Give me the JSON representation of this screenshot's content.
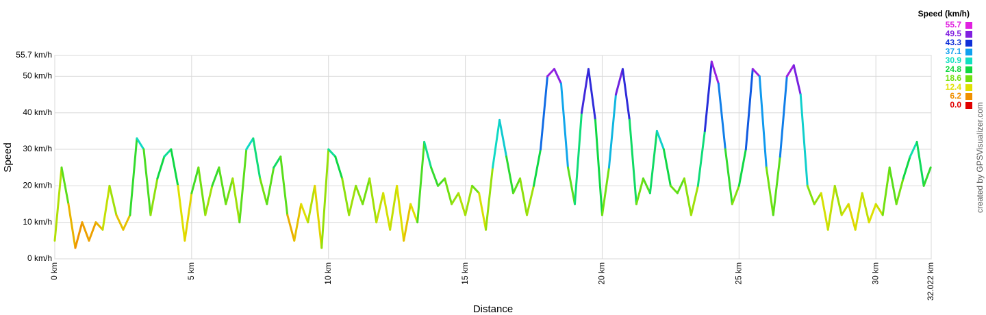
{
  "chart_data": {
    "type": "line",
    "x_label": "Distance",
    "y_label": "Speed",
    "credit": "created by GPSVisualizer.com",
    "grid": true,
    "legend_position": "top-right",
    "legend": {
      "title": "Speed (km/h)",
      "values": [
        55.7,
        49.5,
        43.3,
        37.1,
        30.9,
        24.8,
        18.6,
        12.4,
        6.2,
        {
          "value": 0,
          "label": "0.0"
        }
      ],
      "colors": [
        "#e020e0",
        "#8020e0",
        "#1030d8",
        "#10a0f0",
        "#10e0c0",
        "#10d840",
        "#70e010",
        "#e0e000",
        "#f09000",
        "#e00000"
      ]
    },
    "xlim": [
      0,
      32.022
    ],
    "ylim": [
      0,
      55.7
    ],
    "xticks": [
      {
        "value": 0,
        "label": "0 km"
      },
      {
        "value": 5,
        "label": "5 km"
      },
      {
        "value": 10,
        "label": "10 km"
      },
      {
        "value": 15,
        "label": "15 km"
      },
      {
        "value": 20,
        "label": "20 km"
      },
      {
        "value": 25,
        "label": "25 km"
      },
      {
        "value": 30,
        "label": "30 km"
      },
      {
        "value": 32.022,
        "label": "32.022 km"
      }
    ],
    "yticks": [
      {
        "value": 0,
        "label": "0 km/h"
      },
      {
        "value": 10,
        "label": "10 km/h"
      },
      {
        "value": 20,
        "label": "20 km/h"
      },
      {
        "value": 30,
        "label": "30 km/h"
      },
      {
        "value": 40,
        "label": "40 km/h"
      },
      {
        "value": 50,
        "label": "50 km/h"
      },
      {
        "value": 55.7,
        "label": "55.7 km/h"
      }
    ],
    "x": [
      0,
      0.25,
      0.5,
      0.75,
      1,
      1.25,
      1.5,
      1.75,
      2,
      2.25,
      2.5,
      2.75,
      3,
      3.25,
      3.5,
      3.75,
      4,
      4.25,
      4.5,
      4.75,
      5,
      5.25,
      5.5,
      5.75,
      6,
      6.25,
      6.5,
      6.75,
      7,
      7.25,
      7.5,
      7.75,
      8,
      8.25,
      8.5,
      8.75,
      9,
      9.25,
      9.5,
      9.75,
      10,
      10.25,
      10.5,
      10.75,
      11,
      11.25,
      11.5,
      11.75,
      12,
      12.25,
      12.5,
      12.75,
      13,
      13.25,
      13.5,
      13.75,
      14,
      14.25,
      14.5,
      14.75,
      15,
      15.25,
      15.5,
      15.75,
      16,
      16.25,
      16.5,
      16.75,
      17,
      17.25,
      17.5,
      17.75,
      18,
      18.25,
      18.5,
      18.75,
      19,
      19.25,
      19.5,
      19.75,
      20,
      20.25,
      20.5,
      20.75,
      21,
      21.25,
      21.5,
      21.75,
      22,
      22.25,
      22.5,
      22.75,
      23,
      23.25,
      23.5,
      23.75,
      24,
      24.25,
      24.5,
      24.75,
      25,
      25.25,
      25.5,
      25.75,
      26,
      26.25,
      26.5,
      26.75,
      27,
      27.25,
      27.5,
      27.75,
      28,
      28.25,
      28.5,
      28.75,
      29,
      29.25,
      29.5,
      29.75,
      30,
      30.25,
      30.5,
      30.75,
      31,
      31.25,
      31.5,
      31.75,
      32
    ],
    "series": [
      {
        "name": "Speed",
        "values": [
          5,
          25,
          15,
          3,
          10,
          5,
          10,
          8,
          20,
          12,
          8,
          12,
          33,
          30,
          12,
          22,
          28,
          30,
          20,
          5,
          18,
          25,
          12,
          20,
          25,
          15,
          22,
          10,
          30,
          33,
          22,
          15,
          25,
          28,
          12,
          5,
          15,
          10,
          20,
          3,
          30,
          28,
          22,
          12,
          20,
          15,
          22,
          10,
          18,
          8,
          20,
          5,
          15,
          10,
          32,
          25,
          20,
          22,
          15,
          18,
          12,
          20,
          18,
          8,
          25,
          38,
          28,
          18,
          22,
          12,
          20,
          30,
          50,
          52,
          48,
          25,
          15,
          40,
          52,
          38,
          12,
          25,
          45,
          52,
          38,
          15,
          22,
          18,
          35,
          30,
          20,
          18,
          22,
          12,
          20,
          35,
          54,
          48,
          30,
          15,
          20,
          30,
          52,
          50,
          25,
          12,
          28,
          50,
          53,
          45,
          20,
          15,
          18,
          8,
          20,
          12,
          15,
          8,
          18,
          10,
          15,
          12,
          25,
          15,
          22,
          28,
          32,
          20,
          25
        ]
      }
    ]
  }
}
